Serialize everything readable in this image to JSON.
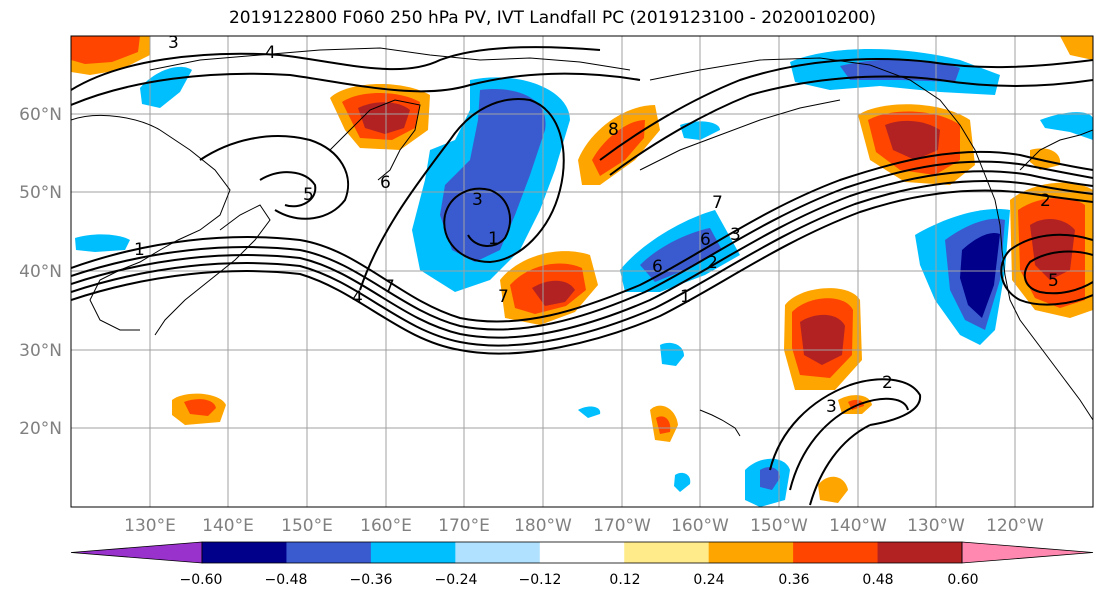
{
  "title": "2019122800 F060 250 hPa PV, IVT Landfall PC (2019123100 - 2020010200)",
  "map": {
    "lat_labels": [
      "60°N",
      "50°N",
      "40°N",
      "30°N",
      "20°N"
    ],
    "lon_labels": [
      "130°E",
      "140°E",
      "150°E",
      "160°E",
      "170°E",
      "180°W",
      "170°W",
      "160°W",
      "150°W",
      "140°W",
      "130°W",
      "120°W"
    ],
    "contour_labels": [
      "4",
      "3",
      "6",
      "5",
      "1",
      "7",
      "4",
      "3",
      "1",
      "6",
      "7",
      "8",
      "7",
      "6",
      "2",
      "3",
      "1",
      "2",
      "3",
      "5",
      "2"
    ],
    "colors": {
      "purple": "#9932cc",
      "navy": "#00008b",
      "royal_blue": "#3a5bd0",
      "deep_sky_blue": "#00bfff",
      "light_blue": "#b0e2ff",
      "white": "#ffffff",
      "khaki": "#ffeb8a",
      "orange": "#ffa500",
      "orange_red": "#ff4500",
      "firebrick": "#b22222",
      "pink": "#ff88b0"
    }
  },
  "colorbar": {
    "tick_labels": [
      "−0.60",
      "−0.48",
      "−0.36",
      "−0.24",
      "−0.12",
      "0.12",
      "0.24",
      "0.36",
      "0.48",
      "0.60"
    ],
    "bins": [
      "purple",
      "navy",
      "royal_blue",
      "deep_sky_blue",
      "light_blue",
      "white",
      "khaki",
      "orange",
      "orange_red",
      "firebrick",
      "pink"
    ]
  }
}
